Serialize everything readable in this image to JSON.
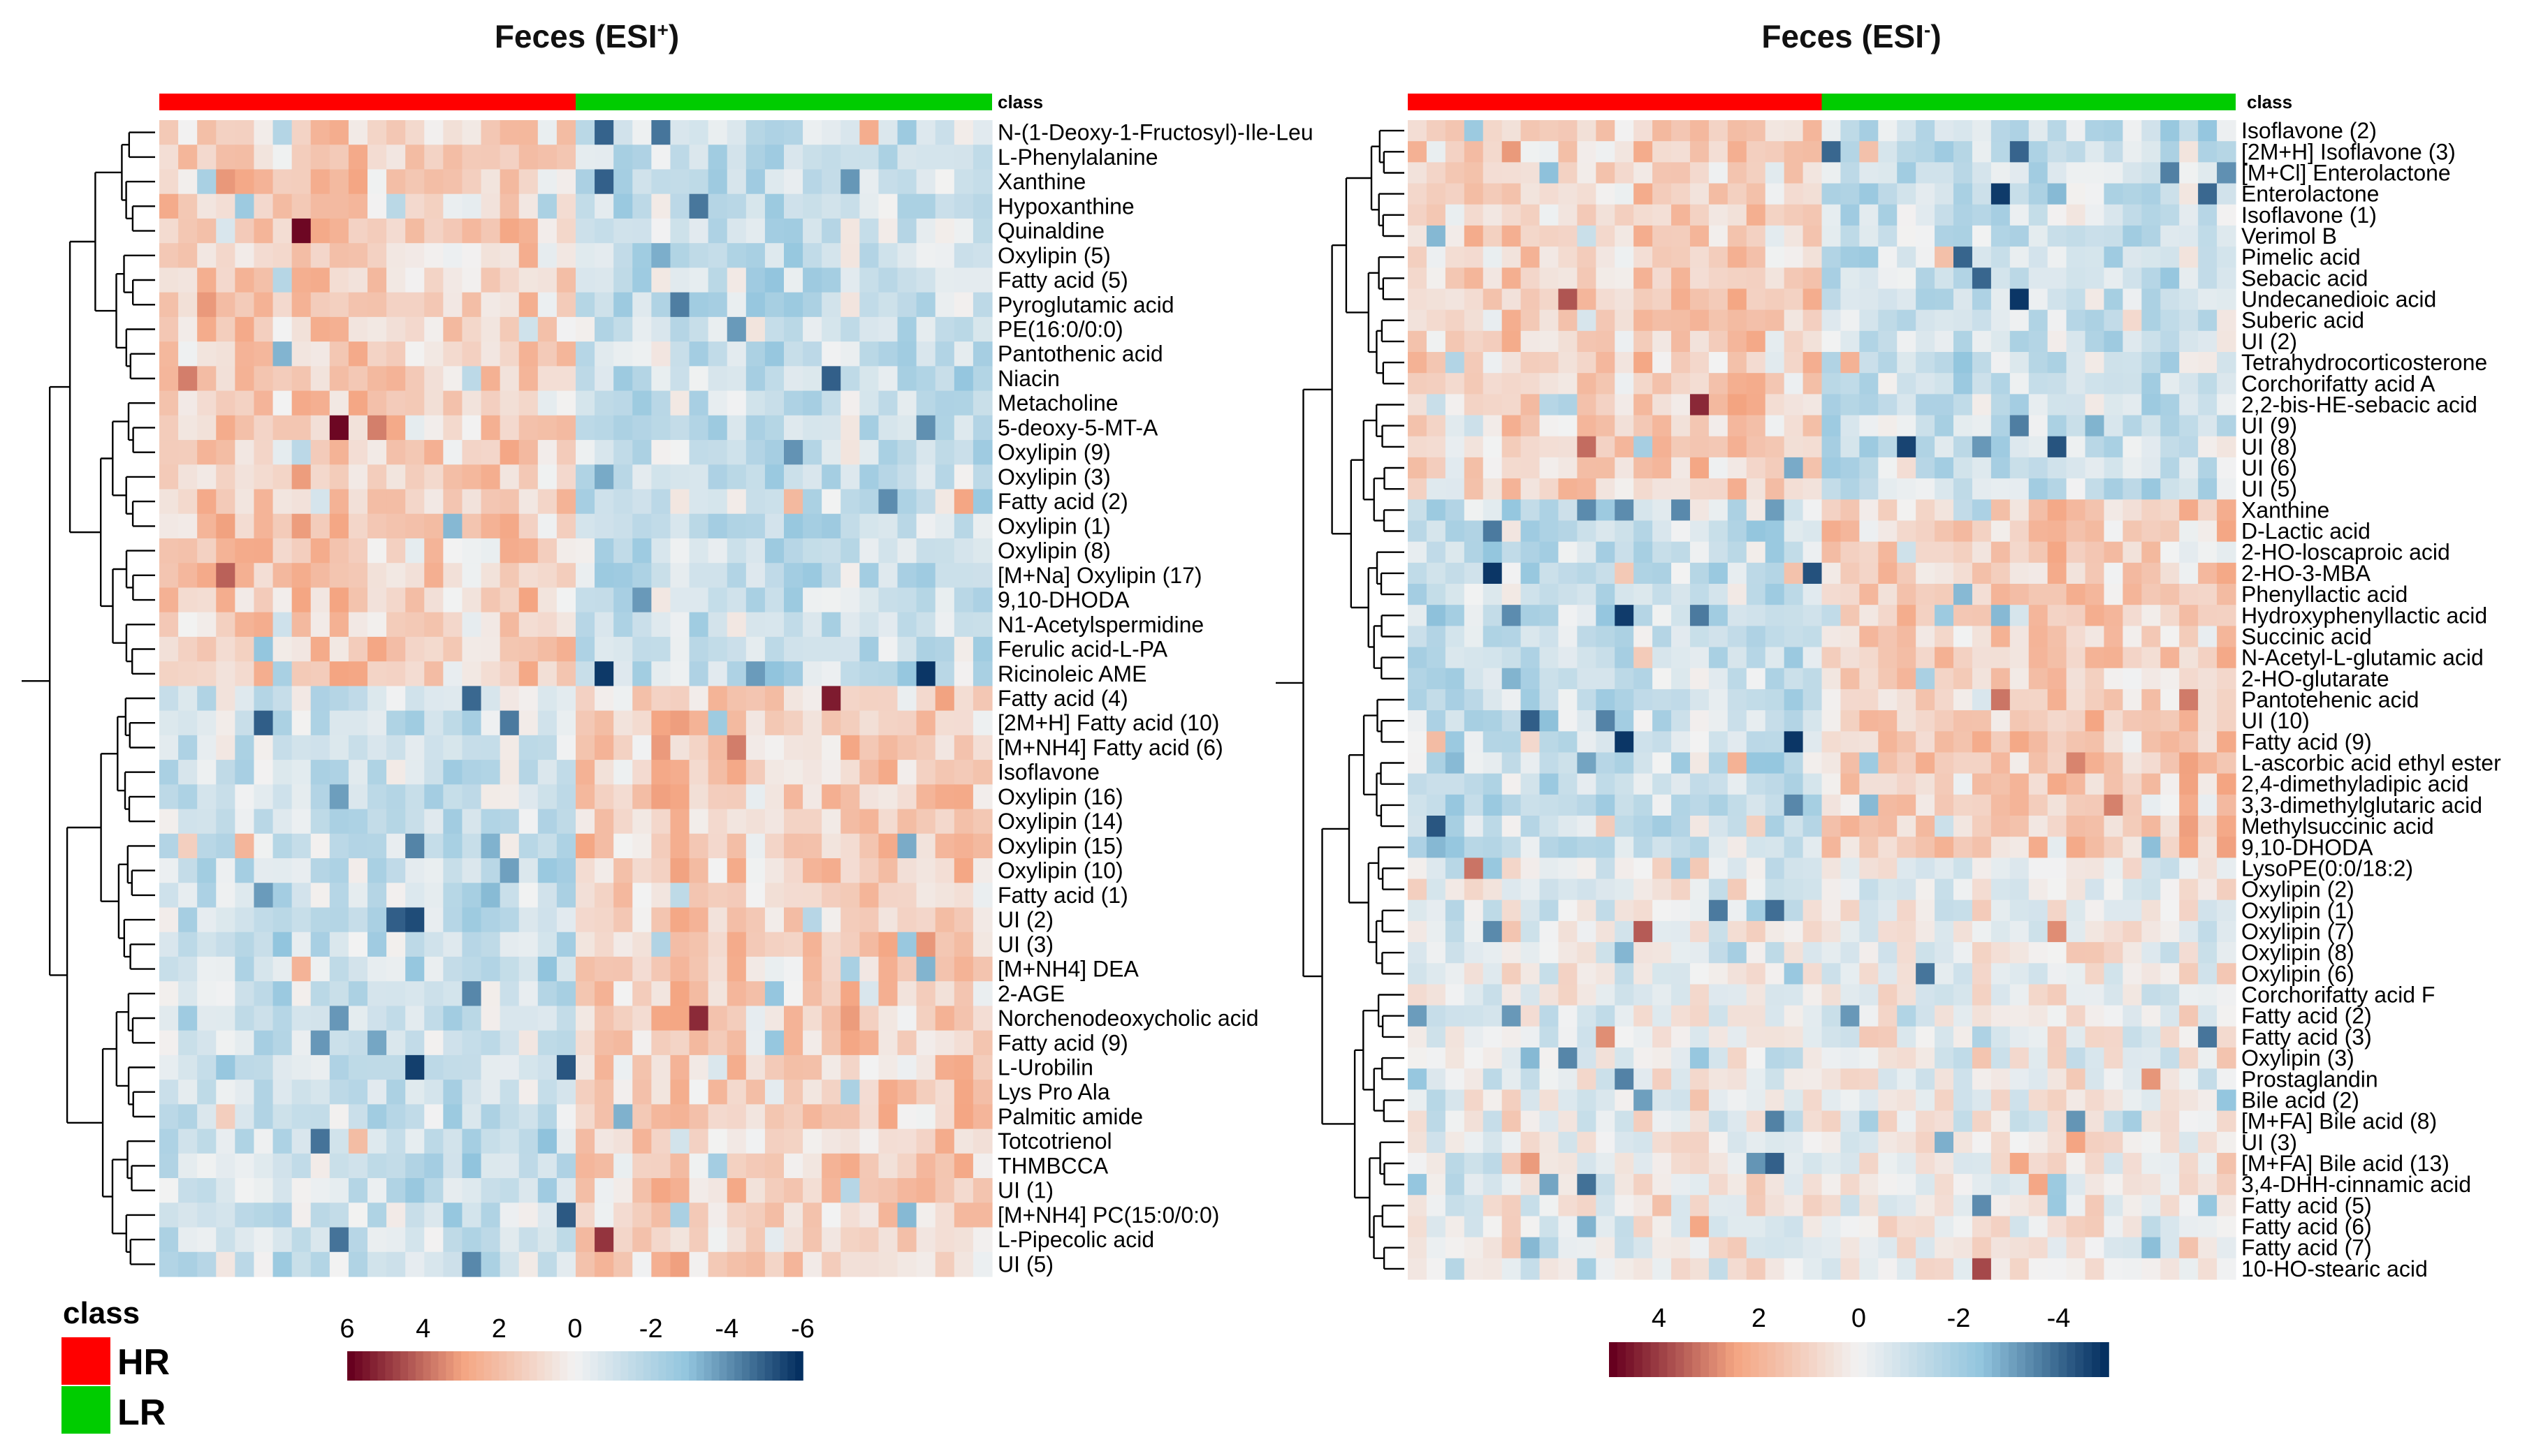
{
  "chart_data": [
    {
      "type": "heatmap",
      "title": "Feces (ESI",
      "title_sup": "+",
      "title_end": ")",
      "class_label": "class",
      "groups": [
        {
          "name": "HR",
          "color": "#ff0000"
        },
        {
          "name": "LR",
          "color": "#00cc00"
        }
      ],
      "group_split_fraction": 0.5,
      "n_columns": 44,
      "rows": [
        "N-(1-Deoxy-1-Fructosyl)-Ile-Leu",
        "L-Phenylalanine",
        "Xanthine",
        "Hypoxanthine",
        "Quinaldine",
        "Oxylipin (5)",
        "Fatty acid (5)",
        "Pyroglutamic acid",
        "PE(16:0/0:0)",
        "Pantothenic acid",
        "Niacin",
        "Metacholine",
        "5-deoxy-5-MT-A",
        "Oxylipin (9)",
        "Oxylipin (3)",
        "Fatty acid (2)",
        "Oxylipin (1)",
        "Oxylipin (8)",
        "[M+Na] Oxylipin (17)",
        "9,10-DHODA",
        "N1-Acetylspermidine",
        "Ferulic acid-L-PA",
        "Ricinoleic AME",
        "Fatty acid (4)",
        "[2M+H] Fatty acid (10)",
        "[M+NH4] Fatty acid (6)",
        "Isoflavone",
        "Oxylipin (16)",
        "Oxylipin (14)",
        "Oxylipin (15)",
        "Oxylipin (10)",
        "Fatty acid (1)",
        "UI (2)",
        "UI (3)",
        "[M+NH4] DEA",
        "2-AGE",
        "Norchenodeoxycholic acid",
        "Fatty acid (9)",
        "L-Urobilin",
        "Lys Pro Ala",
        "Palmitic amide",
        "Totcotrienol",
        "THMBCCA",
        "UI (1)",
        "[M+NH4] PC(15:0/0:0)",
        "L-Pipecolic acid",
        "UI (5)"
      ],
      "row_pattern": [
        1,
        1,
        1,
        1,
        1,
        1,
        1,
        1,
        1,
        1,
        1,
        1,
        1,
        1,
        1,
        1,
        1,
        1,
        1,
        1,
        1,
        1,
        1,
        -1,
        -1,
        -1,
        -1,
        -1,
        -1,
        -1,
        -1,
        -1,
        -1,
        -1,
        -1,
        -1,
        -1,
        -1,
        -1,
        -1,
        -1,
        -1,
        -1,
        -1,
        -1,
        -1,
        -1
      ],
      "colorbar": {
        "ticks": [
          "6",
          "4",
          "2",
          "0",
          "-2",
          "-4",
          "-6"
        ],
        "range": [
          6,
          -6
        ]
      }
    },
    {
      "type": "heatmap",
      "title": "Feces (ESI",
      "title_sup": "-",
      "title_end": ")",
      "class_label": "class",
      "groups": [
        {
          "name": "HR",
          "color": "#ff0000"
        },
        {
          "name": "LR",
          "color": "#00cc00"
        }
      ],
      "group_split_fraction": 0.5,
      "n_columns": 44,
      "rows": [
        "Isoflavone (2)",
        "[2M+H] Isoflavone (3)",
        "[M+Cl] Enterolactone",
        "Enterolactone",
        "Isoflavone (1)",
        "Verimol B",
        "Pimelic acid",
        "Sebacic acid",
        "Undecanedioic acid",
        "Suberic acid",
        "UI (2)",
        "Tetrahydrocorticosterone",
        "Corchorifatty acid A",
        "2,2-bis-HE-sebacic acid",
        "UI (9)",
        "UI (8)",
        "UI (6)",
        "UI (5)",
        "Xanthine",
        "D-Lactic acid",
        "2-HO-loscaproic acid",
        "2-HO-3-MBA",
        "Phenyllactic acid",
        "Hydroxyphenyllactic acid",
        "Succinic acid",
        "N-Acetyl-L-glutamic acid",
        "2-HO-glutarate",
        "Pantotehenic acid",
        "UI (10)",
        "Fatty acid (9)",
        "L-ascorbic acid ethyl ester",
        "2,4-dimethyladipic acid",
        "3,3-dimethylglutaric acid",
        "Methylsuccinic acid",
        "9,10-DHODA",
        "LysoPE(0:0/18:2)",
        "Oxylipin (2)",
        "Oxylipin (1)",
        "Oxylipin (7)",
        "Oxylipin (8)",
        "Oxylipin (6)",
        "Corchorifatty acid F",
        "Fatty acid (2)",
        "Fatty acid (3)",
        "Oxylipin (3)",
        "Prostaglandin",
        "Bile acid (2)",
        "[M+FA] Bile acid (8)",
        "UI (3)",
        "[M+FA] Bile acid (13)",
        "3,4-DHH-cinnamic acid",
        "Fatty acid (5)",
        "Fatty acid (6)",
        "Fatty acid (7)",
        "10-HO-stearic acid"
      ],
      "row_pattern": [
        1,
        1,
        1,
        1,
        1,
        1,
        1,
        1,
        1,
        1,
        1,
        1,
        1,
        1,
        1,
        1,
        1,
        1,
        -1,
        -1,
        -1,
        -1,
        -1,
        -1,
        -1,
        -1,
        -1,
        -1,
        -1,
        -1,
        -1,
        -1,
        -1,
        -1,
        -1,
        0,
        0,
        0,
        0,
        0,
        0,
        0,
        0,
        0,
        0,
        0,
        0,
        0,
        0,
        0,
        0,
        0,
        0,
        0,
        0
      ],
      "colorbar": {
        "ticks": [
          "4",
          "2",
          "0",
          "-2",
          "-4"
        ],
        "range": [
          5,
          -5
        ]
      }
    }
  ],
  "legend": {
    "title": "class",
    "items": [
      {
        "label": "HR",
        "color": "#ff0000"
      },
      {
        "label": "LR",
        "color": "#00cc00"
      }
    ]
  },
  "colors": {
    "high": "#67001f",
    "mid": "#f2f2f2",
    "low": "#053061"
  }
}
